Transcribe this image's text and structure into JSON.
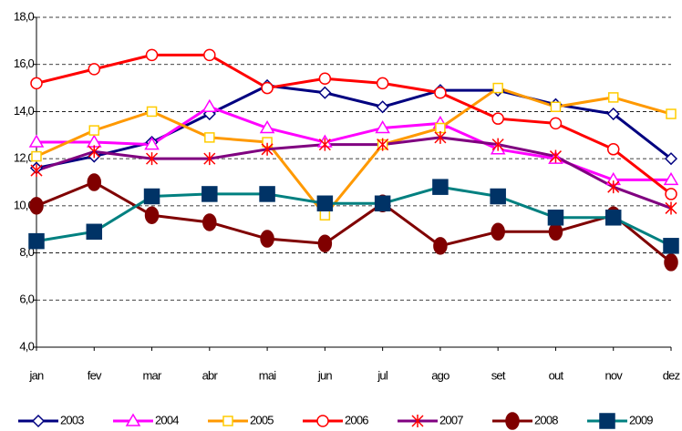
{
  "chart_data": {
    "type": "line",
    "categories": [
      "jan",
      "fev",
      "mar",
      "abr",
      "mai",
      "jun",
      "jul",
      "ago",
      "set",
      "out",
      "nov",
      "dez"
    ],
    "ylim": [
      4,
      18
    ],
    "yticks": [
      {
        "value": 4,
        "label": "4,0"
      },
      {
        "value": 6,
        "label": "6,0"
      },
      {
        "value": 8,
        "label": "8,0"
      },
      {
        "value": 10,
        "label": "10,0"
      },
      {
        "value": 12,
        "label": "12,0"
      },
      {
        "value": 14,
        "label": "14,0"
      },
      {
        "value": 16,
        "label": "16,0"
      },
      {
        "value": 18,
        "label": "18,0"
      }
    ],
    "grid": true,
    "legend": "bottom",
    "series": [
      {
        "name": "2003",
        "color": "#000080",
        "marker": "diamond",
        "marker_fill": "#ffffff",
        "values": [
          11.6,
          12.1,
          12.7,
          13.9,
          15.1,
          14.8,
          14.2,
          14.9,
          14.9,
          14.3,
          13.9,
          12.0
        ]
      },
      {
        "name": "2004",
        "color": "#ff00ff",
        "marker": "triangle",
        "marker_fill": "#ffffff",
        "values": [
          12.7,
          12.7,
          12.6,
          14.2,
          13.3,
          12.7,
          13.3,
          13.5,
          12.4,
          12.0,
          11.1,
          11.1
        ]
      },
      {
        "name": "2005",
        "color": "#ff9900",
        "marker": "square",
        "marker_fill": "#ffffff",
        "values": [
          12.1,
          13.2,
          14.0,
          12.9,
          12.7,
          9.6,
          12.6,
          13.3,
          15.0,
          14.2,
          14.6,
          13.9
        ]
      },
      {
        "name": "2006",
        "color": "#ff0000",
        "marker": "circle",
        "marker_fill": "#ffffff",
        "values": [
          15.2,
          15.8,
          16.4,
          16.4,
          15.0,
          15.4,
          15.2,
          14.8,
          13.7,
          13.5,
          12.4,
          10.5
        ]
      },
      {
        "name": "2007",
        "color": "#800080",
        "marker": "asterisk",
        "marker_fill": "#ff0000",
        "values": [
          11.5,
          12.3,
          12.0,
          12.0,
          12.4,
          12.6,
          12.6,
          12.9,
          12.6,
          12.1,
          10.8,
          9.9
        ]
      },
      {
        "name": "2008",
        "color": "#800000",
        "marker": "circle",
        "marker_fill": "#800000",
        "values": [
          10.0,
          11.0,
          9.6,
          9.3,
          8.6,
          8.4,
          10.1,
          8.3,
          8.9,
          8.9,
          9.6,
          7.6
        ]
      },
      {
        "name": "2009",
        "color": "#008080",
        "marker": "square",
        "marker_fill": "#003366",
        "values": [
          8.5,
          8.9,
          10.4,
          10.5,
          10.5,
          10.1,
          10.1,
          10.8,
          10.4,
          9.5,
          9.5,
          8.3
        ]
      }
    ]
  }
}
